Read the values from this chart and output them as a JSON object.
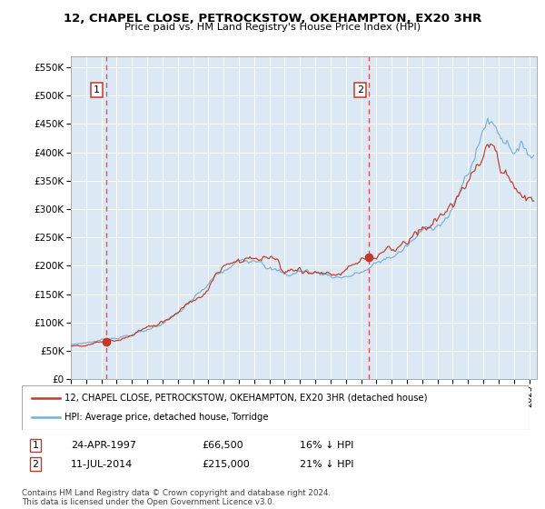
{
  "title1": "12, CHAPEL CLOSE, PETROCKSTOW, OKEHAMPTON, EX20 3HR",
  "title2": "Price paid vs. HM Land Registry's House Price Index (HPI)",
  "legend1": "12, CHAPEL CLOSE, PETROCKSTOW, OKEHAMPTON, EX20 3HR (detached house)",
  "legend2": "HPI: Average price, detached house, Torridge",
  "sale1_date": "24-APR-1997",
  "sale1_price": "£66,500",
  "sale1_hpi": "16% ↓ HPI",
  "sale2_date": "11-JUL-2014",
  "sale2_price": "£215,000",
  "sale2_hpi": "21% ↓ HPI",
  "footnote": "Contains HM Land Registry data © Crown copyright and database right 2024.\nThis data is licensed under the Open Government Licence v3.0.",
  "sale1_year": 1997.31,
  "sale2_year": 2014.53,
  "sale1_value": 66500,
  "sale2_value": 215000,
  "hpi_color": "#7bafd4",
  "property_color": "#c0392b",
  "dashed_line_color": "#e05050",
  "background_color": "#dce9f5",
  "grid_color": "#ffffff",
  "ylim_max": 570000,
  "xlim_min": 1995.0,
  "xlim_max": 2025.5
}
